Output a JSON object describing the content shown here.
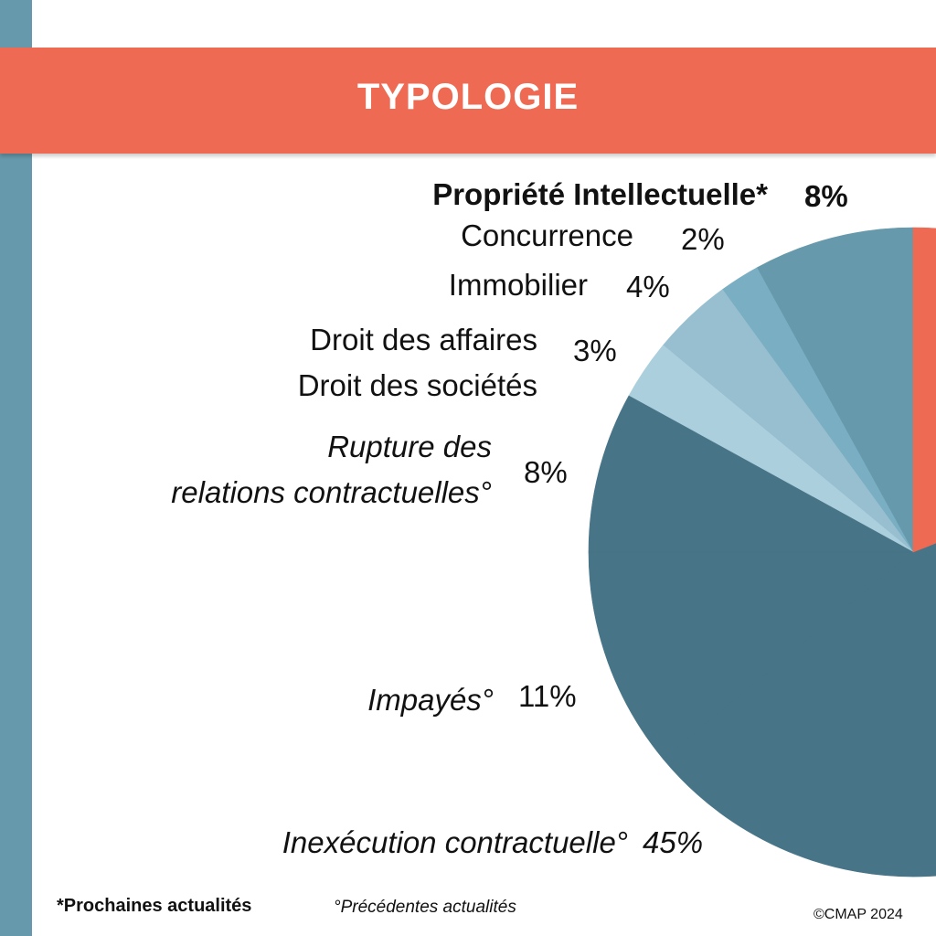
{
  "header": {
    "title": "TYPOLOGIE"
  },
  "chart_data": {
    "type": "pie",
    "title": "TYPOLOGIE",
    "slices": [
      {
        "label": "Propriété Intellectuelle*",
        "value": 8,
        "display": "8%",
        "color": "#6699AB"
      },
      {
        "label": "Concurrence",
        "value": 2,
        "display": "2%",
        "color": "#7AAEC2"
      },
      {
        "label": "Immobilier",
        "value": 4,
        "display": "4%",
        "color": "#97BFD0"
      },
      {
        "label": "Droit des affaires / Droit des sociétés",
        "label_lines": [
          "Droit des affaires",
          "Droit des sociétés"
        ],
        "value": 3,
        "display": "3%",
        "color": "#ABCFDD"
      },
      {
        "label": "Rupture des relations contractuelles°",
        "label_lines": [
          "Rupture des",
          "relations contractuelles°"
        ],
        "value": 8,
        "display": "8%",
        "color": "#477587"
      },
      {
        "label": "Impayés°",
        "value": 11,
        "display": "11%",
        "color": "#477587"
      },
      {
        "label": "Inexécution contractuelle°",
        "value": 45,
        "display": "45%",
        "color": "#477587"
      },
      {
        "label": null,
        "value": 19,
        "display": null,
        "color": "#EE6A52"
      }
    ],
    "direction": "counter-clockwise from 12 o'clock"
  },
  "footer": {
    "note_next": "*Prochaines actualités",
    "note_prev": "°Précédentes actualités",
    "copyright": "©CMAP 2024"
  }
}
